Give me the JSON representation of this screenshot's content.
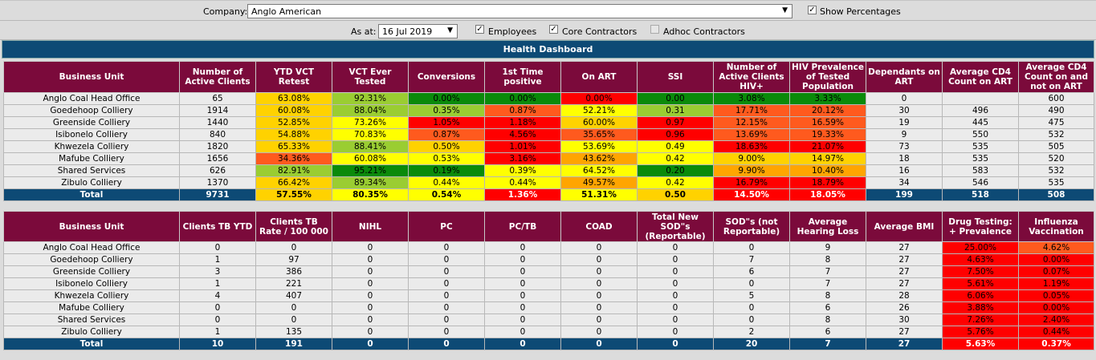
{
  "filters": {
    "company_label": "Company:",
    "company_value": "Anglo American",
    "show_percentages": "Show Percentages",
    "as_at_label": "As at:",
    "as_at_value": "16 Jul 2019",
    "employees": "Employees",
    "core_contractors": "Core Contractors",
    "adhoc_contractors": "Adhoc Contractors"
  },
  "dashboard_title": "Health Dashboard",
  "colors": {
    "header": "#7b0a3b",
    "total": "#0d4a75",
    "dark_green": "#0a8a0a",
    "green": "#9acd32",
    "yellow": "#ffff00",
    "gold": "#ffd200",
    "orange": "#ffa500",
    "red_orange": "#ff5a1e",
    "red": "#ff0000"
  },
  "table1": {
    "headers": [
      "Business Unit",
      "Number of Active Clients",
      "YTD VCT Retest",
      "VCT Ever Tested",
      "Conversions",
      "1st Time positive",
      "On ART",
      "SSI",
      "Number of Active Clients HIV+",
      "HIV Prevalence of Tested Population",
      "Dependants on ART",
      "Average CD4 Count on ART",
      "Average CD4 Count on and not on ART"
    ],
    "rows": [
      [
        "Anglo Coal Head Office",
        "65",
        "63.08%",
        "92.31%",
        "0.00%",
        "0.00%",
        "0.00%",
        "0.00",
        "3.08%",
        "3.33%",
        "0",
        "",
        "600"
      ],
      [
        "Goedehoop Colliery",
        "1914",
        "60.08%",
        "88.04%",
        "0.35%",
        "0.87%",
        "52.21%",
        "0.31",
        "17.71%",
        "20.12%",
        "30",
        "496",
        "490"
      ],
      [
        "Greenside Colliery",
        "1440",
        "52.85%",
        "73.26%",
        "1.05%",
        "1.18%",
        "60.00%",
        "0.97",
        "12.15%",
        "16.59%",
        "19",
        "445",
        "475"
      ],
      [
        "Isibonelo Colliery",
        "840",
        "54.88%",
        "70.83%",
        "0.87%",
        "4.56%",
        "35.65%",
        "0.96",
        "13.69%",
        "19.33%",
        "9",
        "550",
        "532"
      ],
      [
        "Khwezela Colliery",
        "1820",
        "65.33%",
        "88.41%",
        "0.50%",
        "1.01%",
        "53.69%",
        "0.49",
        "18.63%",
        "21.07%",
        "73",
        "535",
        "505"
      ],
      [
        "Mafube Colliery",
        "1656",
        "34.36%",
        "60.08%",
        "0.53%",
        "3.16%",
        "43.62%",
        "0.42",
        "9.00%",
        "14.97%",
        "18",
        "535",
        "520"
      ],
      [
        "Shared Services",
        "626",
        "82.91%",
        "95.21%",
        "0.19%",
        "0.39%",
        "64.52%",
        "0.20",
        "9.90%",
        "10.40%",
        "16",
        "583",
        "532"
      ],
      [
        "Zibulo Colliery",
        "1370",
        "66.42%",
        "89.34%",
        "0.44%",
        "0.44%",
        "49.57%",
        "0.42",
        "16.79%",
        "18.79%",
        "34",
        "546",
        "535"
      ]
    ],
    "row_colors": [
      [
        "",
        "",
        "gold",
        "green",
        "dark_green",
        "dark_green",
        "red",
        "dark_green",
        "dark_green",
        "dark_green",
        "",
        "",
        ""
      ],
      [
        "",
        "",
        "gold",
        "green",
        "green",
        "red_orange",
        "yellow",
        "green",
        "red_orange",
        "red_orange",
        "",
        "",
        ""
      ],
      [
        "",
        "",
        "gold",
        "yellow",
        "red",
        "red",
        "gold",
        "red",
        "red_orange",
        "red_orange",
        "",
        "",
        ""
      ],
      [
        "",
        "",
        "gold",
        "yellow",
        "red_orange",
        "red",
        "red_orange",
        "red",
        "red_orange",
        "red_orange",
        "",
        "",
        ""
      ],
      [
        "",
        "",
        "gold",
        "green",
        "gold",
        "red",
        "yellow",
        "yellow",
        "red",
        "red",
        "",
        "",
        ""
      ],
      [
        "",
        "",
        "red_orange",
        "yellow",
        "yellow",
        "red",
        "orange",
        "yellow",
        "gold",
        "gold",
        "",
        "",
        ""
      ],
      [
        "",
        "",
        "green",
        "dark_green",
        "dark_green",
        "yellow",
        "yellow",
        "dark_green",
        "orange",
        "orange",
        "",
        "",
        ""
      ],
      [
        "",
        "",
        "gold",
        "green",
        "yellow",
        "yellow",
        "orange",
        "yellow",
        "red",
        "red",
        "",
        "",
        ""
      ]
    ],
    "total": [
      "Total",
      "9731",
      "57.55%",
      "80.35%",
      "0.54%",
      "1.36%",
      "51.31%",
      "0.50",
      "14.50%",
      "18.05%",
      "199",
      "518",
      "508"
    ],
    "total_colors": [
      "",
      "",
      "gold",
      "yellow",
      "yellow",
      "red",
      "yellow",
      "gold",
      "red",
      "red",
      "",
      "",
      ""
    ]
  },
  "table2": {
    "headers": [
      "Business Unit",
      "Clients TB YTD",
      "Clients TB Rate / 100 000",
      "NIHL",
      "PC",
      "PC/TB",
      "COAD",
      "Total New SOD\"s (Reportable)",
      "SOD\"s (not Reportable)",
      "Average Hearing Loss",
      "Average BMI",
      "Drug Testing: + Prevalence",
      "Influenza Vaccination"
    ],
    "rows": [
      [
        "Anglo Coal Head Office",
        "0",
        "0",
        "0",
        "0",
        "0",
        "0",
        "0",
        "0",
        "9",
        "27",
        "25.00%",
        "4.62%"
      ],
      [
        "Goedehoop Colliery",
        "1",
        "97",
        "0",
        "0",
        "0",
        "0",
        "0",
        "7",
        "8",
        "27",
        "4.63%",
        "0.00%"
      ],
      [
        "Greenside Colliery",
        "3",
        "386",
        "0",
        "0",
        "0",
        "0",
        "0",
        "6",
        "7",
        "27",
        "7.50%",
        "0.07%"
      ],
      [
        "Isibonelo Colliery",
        "1",
        "221",
        "0",
        "0",
        "0",
        "0",
        "0",
        "0",
        "7",
        "27",
        "5.61%",
        "1.19%"
      ],
      [
        "Khwezela Colliery",
        "4",
        "407",
        "0",
        "0",
        "0",
        "0",
        "0",
        "5",
        "8",
        "28",
        "6.06%",
        "0.05%"
      ],
      [
        "Mafube Colliery",
        "0",
        "0",
        "0",
        "0",
        "0",
        "0",
        "0",
        "0",
        "6",
        "26",
        "3.88%",
        "0.00%"
      ],
      [
        "Shared Services",
        "0",
        "0",
        "0",
        "0",
        "0",
        "0",
        "0",
        "0",
        "8",
        "30",
        "7.26%",
        "2.40%"
      ],
      [
        "Zibulo Colliery",
        "1",
        "135",
        "0",
        "0",
        "0",
        "0",
        "0",
        "2",
        "6",
        "27",
        "5.76%",
        "0.44%"
      ]
    ],
    "row_colors": [
      [
        "",
        "",
        "",
        "",
        "",
        "",
        "",
        "",
        "",
        "",
        "",
        "red",
        "red_orange"
      ],
      [
        "",
        "",
        "",
        "",
        "",
        "",
        "",
        "",
        "",
        "",
        "",
        "red",
        "red"
      ],
      [
        "",
        "",
        "",
        "",
        "",
        "",
        "",
        "",
        "",
        "",
        "",
        "red",
        "red"
      ],
      [
        "",
        "",
        "",
        "",
        "",
        "",
        "",
        "",
        "",
        "",
        "",
        "red",
        "red"
      ],
      [
        "",
        "",
        "",
        "",
        "",
        "",
        "",
        "",
        "",
        "",
        "",
        "red",
        "red"
      ],
      [
        "",
        "",
        "",
        "",
        "",
        "",
        "",
        "",
        "",
        "",
        "",
        "red",
        "red"
      ],
      [
        "",
        "",
        "",
        "",
        "",
        "",
        "",
        "",
        "",
        "",
        "",
        "red",
        "red"
      ],
      [
        "",
        "",
        "",
        "",
        "",
        "",
        "",
        "",
        "",
        "",
        "",
        "red",
        "red"
      ]
    ],
    "total": [
      "Total",
      "10",
      "191",
      "0",
      "0",
      "0",
      "0",
      "0",
      "20",
      "7",
      "27",
      "5.63%",
      "0.37%"
    ],
    "total_colors": [
      "",
      "",
      "",
      "",
      "",
      "",
      "",
      "",
      "",
      "",
      "",
      "red",
      "red"
    ]
  }
}
